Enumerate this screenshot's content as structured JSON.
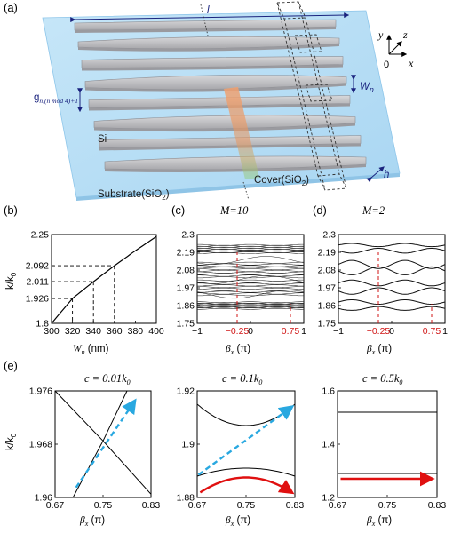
{
  "panels": {
    "a": {
      "label": "(a)",
      "length_label": "l",
      "width_label": "W",
      "width_sub": "n",
      "gap_label": "g",
      "gap_sub": "n,(n mod 4)+1",
      "height_label": "h",
      "si_label": "Si",
      "substrate_label": "Substrate(SiO",
      "substrate_sub": "2",
      "cover_label": "Cover(SiO",
      "cover_sub": "2",
      "axis_x": "x",
      "axis_y": "y",
      "axis_z": "z",
      "axis_origin": "0",
      "colors": {
        "substrate": "#b6dcf4",
        "waveguide": "#c8c8cb",
        "annotation": "#1a237e"
      }
    },
    "b": {
      "label": "(b)",
      "ylabel": "k/k",
      "ylabel_sub": "0",
      "xlabel": "W",
      "xlabel_sub": "n",
      "xlabel_unit": " (nm)"
    },
    "c": {
      "label": "(c)",
      "title": "M=10",
      "xlabel": "β",
      "xlabel_sub": "x",
      "xlabel_unit": " (π)",
      "red_ticks": [
        "−0.25",
        "0.75"
      ]
    },
    "d": {
      "label": "(d)",
      "title": "M=2",
      "xlabel": "β",
      "xlabel_sub": "x",
      "xlabel_unit": " (π)",
      "red_ticks": [
        "−0.25",
        "0.75"
      ]
    },
    "e": {
      "label": "(e)",
      "ylabel": "k/k",
      "ylabel_sub": "0",
      "xlabel": "β",
      "xlabel_sub": "x",
      "xlabel_unit": " (π)",
      "titles": [
        "c = 0.01k",
        "c = 0.1k",
        "c = 0.5k"
      ],
      "title_sub": "0",
      "arrow_colors": {
        "blue": "#29a8e0",
        "red": "#e01010"
      }
    }
  },
  "chart_data": [
    {
      "panel": "b",
      "type": "line",
      "x": [
        300,
        320,
        340,
        360,
        380,
        400
      ],
      "y": [
        1.8,
        1.926,
        2.011,
        2.092,
        2.168,
        2.24
      ],
      "xlim": [
        300,
        400
      ],
      "ylim": [
        1.8,
        2.25
      ],
      "xticks": [
        "300",
        "320",
        "340",
        "360",
        "380",
        "400"
      ],
      "yticks": [
        "1.8",
        "1.926",
        "2.011",
        "2.092",
        "2.25"
      ],
      "markers": [
        {
          "x": 320,
          "y": 1.926
        },
        {
          "x": 340,
          "y": 2.011
        },
        {
          "x": 360,
          "y": 2.092
        }
      ]
    },
    {
      "panel": "c",
      "type": "line",
      "xlim": [
        -1,
        1
      ],
      "ylim": [
        1.75,
        2.3
      ],
      "xticks": [
        "−1",
        "0",
        "1"
      ],
      "yticks": [
        "1.75",
        "1.86",
        "1.97",
        "2.08",
        "2.19",
        "2.3"
      ],
      "band_groups": [
        {
          "center": 1.86,
          "spread": 0.04,
          "lines": 10
        },
        {
          "center": 1.97,
          "spread": 0.09,
          "lines": 10
        },
        {
          "center": 2.08,
          "spread": 0.09,
          "lines": 10
        },
        {
          "center": 2.21,
          "spread": 0.05,
          "lines": 10
        }
      ],
      "markers_x": [
        -0.25,
        0.75
      ]
    },
    {
      "panel": "d",
      "type": "line",
      "xlim": [
        -1,
        1
      ],
      "ylim": [
        1.75,
        2.3
      ],
      "xticks": [
        "−1",
        "0",
        "1"
      ],
      "yticks": [
        "1.75",
        "1.86",
        "1.97",
        "2.08",
        "2.19",
        "2.3"
      ],
      "bands": [
        {
          "base": 1.842,
          "amp": 0.012
        },
        {
          "base": 1.882,
          "amp": -0.014
        },
        {
          "base": 1.95,
          "amp": 0.02
        },
        {
          "base": 2.0,
          "amp": -0.018
        },
        {
          "base": 2.075,
          "amp": 0.025
        },
        {
          "base": 2.115,
          "amp": -0.025
        },
        {
          "base": 2.2,
          "amp": 0.015
        },
        {
          "base": 2.235,
          "amp": -0.01
        }
      ],
      "markers_x": [
        -0.25,
        0.75
      ]
    },
    {
      "panel": "e1",
      "type": "line",
      "xlim": [
        0.67,
        0.83
      ],
      "ylim": [
        1.96,
        1.976
      ],
      "xticks": [
        "0.67",
        "0.75",
        "0.83"
      ],
      "yticks": [
        "1.96",
        "1.968",
        "1.976"
      ],
      "series": [
        {
          "x": [
            0.67,
            0.75,
            0.83
          ],
          "y": [
            1.976,
            1.9685,
            1.9605
          ]
        },
        {
          "x": [
            0.7,
            0.75,
            0.79
          ],
          "y": [
            1.96,
            1.9685,
            1.976
          ]
        }
      ]
    },
    {
      "panel": "e2",
      "type": "line",
      "xlim": [
        0.67,
        0.83
      ],
      "ylim": [
        1.88,
        1.92
      ],
      "xticks": [
        "0.67",
        "0.75",
        "0.83"
      ],
      "yticks": [
        "1.88",
        "1.9",
        "1.92"
      ],
      "bands": [
        {
          "edge": 1.889,
          "peak": 1.891,
          "dir": 1
        },
        {
          "edge": 1.915,
          "peak": 1.907,
          "dir": -1
        }
      ]
    },
    {
      "panel": "e3",
      "type": "line",
      "xlim": [
        0.67,
        0.83
      ],
      "ylim": [
        1.2,
        1.6
      ],
      "xticks": [
        "0.67",
        "0.75",
        "0.83"
      ],
      "yticks": [
        "1.2",
        "1.4",
        "1.6"
      ],
      "series": [
        {
          "x": [
            0.67,
            0.83
          ],
          "y": [
            1.52,
            1.52
          ]
        },
        {
          "x": [
            0.67,
            0.83
          ],
          "y": [
            1.29,
            1.29
          ]
        }
      ]
    }
  ]
}
